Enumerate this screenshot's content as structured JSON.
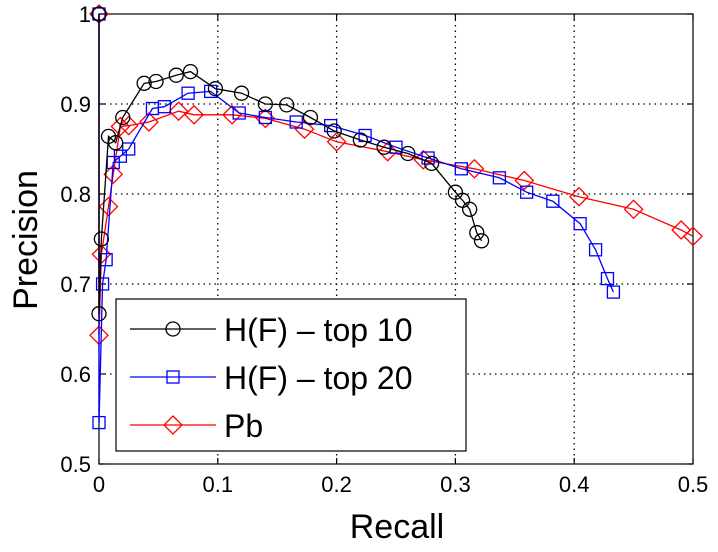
{
  "chart_data": {
    "type": "line",
    "xlabel": "Recall",
    "ylabel": "Precision",
    "xlim": [
      0,
      0.5
    ],
    "ylim": [
      0.5,
      1.0
    ],
    "x_ticks": [
      0,
      0.1,
      0.2,
      0.3,
      0.4,
      0.5
    ],
    "x_tick_labels": [
      "0",
      "0.1",
      "0.2",
      "0.3",
      "0.4",
      "0.5"
    ],
    "y_ticks": [
      0.5,
      0.6,
      0.7,
      0.8,
      0.9,
      1.0
    ],
    "y_tick_labels": [
      "0.5",
      "0.6",
      "0.7",
      "0.8",
      "0.9",
      "1"
    ],
    "grid": true,
    "grid_style": "dotted",
    "legend_position": "bottom-left",
    "series": [
      {
        "name": "H(F) – top 10",
        "color": "#000000",
        "marker": "circle",
        "points": [
          [
            0.0,
            1.0
          ],
          [
            0.0,
            0.667
          ],
          [
            0.002,
            0.75
          ],
          [
            0.008,
            0.864
          ],
          [
            0.014,
            0.857
          ],
          [
            0.02,
            0.885
          ],
          [
            0.038,
            0.923
          ],
          [
            0.048,
            0.925
          ],
          [
            0.065,
            0.932
          ],
          [
            0.077,
            0.936
          ],
          [
            0.098,
            0.917
          ],
          [
            0.12,
            0.912
          ],
          [
            0.14,
            0.9
          ],
          [
            0.158,
            0.899
          ],
          [
            0.178,
            0.885
          ],
          [
            0.198,
            0.87
          ],
          [
            0.22,
            0.86
          ],
          [
            0.24,
            0.852
          ],
          [
            0.26,
            0.845
          ],
          [
            0.28,
            0.834
          ],
          [
            0.3,
            0.802
          ],
          [
            0.306,
            0.793
          ],
          [
            0.312,
            0.783
          ],
          [
            0.318,
            0.757
          ],
          [
            0.322,
            0.748
          ]
        ]
      },
      {
        "name": "H(F) – top 20",
        "color": "#0000ff",
        "marker": "square",
        "points": [
          [
            0.0,
            1.0
          ],
          [
            0.0,
            0.546
          ],
          [
            0.003,
            0.7
          ],
          [
            0.006,
            0.727
          ],
          [
            0.012,
            0.835
          ],
          [
            0.018,
            0.842
          ],
          [
            0.025,
            0.85
          ],
          [
            0.045,
            0.895
          ],
          [
            0.055,
            0.897
          ],
          [
            0.075,
            0.912
          ],
          [
            0.094,
            0.914
          ],
          [
            0.118,
            0.89
          ],
          [
            0.14,
            0.885
          ],
          [
            0.166,
            0.88
          ],
          [
            0.195,
            0.876
          ],
          [
            0.224,
            0.865
          ],
          [
            0.25,
            0.852
          ],
          [
            0.277,
            0.84
          ],
          [
            0.305,
            0.828
          ],
          [
            0.337,
            0.818
          ],
          [
            0.36,
            0.802
          ],
          [
            0.382,
            0.792
          ],
          [
            0.405,
            0.767
          ],
          [
            0.418,
            0.738
          ],
          [
            0.428,
            0.706
          ],
          [
            0.433,
            0.691
          ]
        ]
      },
      {
        "name": "Pb",
        "color": "#ff0000",
        "marker": "diamond",
        "points": [
          [
            0.0,
            1.0
          ],
          [
            0.0,
            0.643
          ],
          [
            0.002,
            0.733
          ],
          [
            0.008,
            0.786
          ],
          [
            0.012,
            0.822
          ],
          [
            0.018,
            0.875
          ],
          [
            0.025,
            0.876
          ],
          [
            0.042,
            0.88
          ],
          [
            0.067,
            0.892
          ],
          [
            0.08,
            0.888
          ],
          [
            0.112,
            0.888
          ],
          [
            0.14,
            0.884
          ],
          [
            0.173,
            0.872
          ],
          [
            0.2,
            0.858
          ],
          [
            0.243,
            0.847
          ],
          [
            0.273,
            0.838
          ],
          [
            0.316,
            0.828
          ],
          [
            0.358,
            0.815
          ],
          [
            0.404,
            0.797
          ],
          [
            0.45,
            0.783
          ],
          [
            0.49,
            0.76
          ],
          [
            0.5,
            0.753
          ]
        ]
      }
    ]
  }
}
